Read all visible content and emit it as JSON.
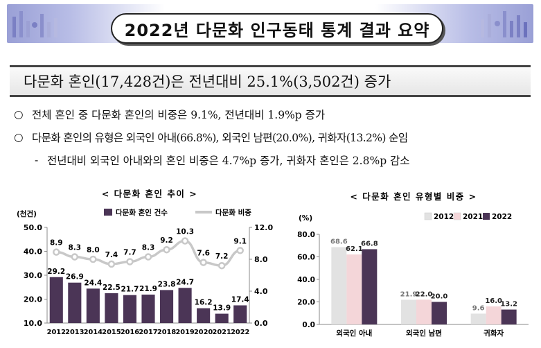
{
  "title": "2022년 다문화 인구동태 통계 결과 요약",
  "headline": "다문화 혼인(17,428건)은 전년대비 25.1%(3,502건) 증가",
  "bullets": [
    {
      "marker": "○",
      "text": "전체 혼인 중 다문화 혼인의 비중은 9.1%, 전년대비 1.9%p 증가"
    },
    {
      "marker": "○",
      "text": "다문화 혼인의 유형은 외국인 아내(66.8%), 외국인 남편(20.0%), 귀화자(13.2%) 순임"
    },
    {
      "marker": "-",
      "text": "전년대비 외국인 아내와의 혼인 비중은 4.7%p 증가, 귀화자 혼인은 2.8%p 감소"
    }
  ],
  "colors": {
    "bar_dark": "#4b3556",
    "line_gray": "#c8c8c8",
    "bar_2012": "#e2e2e2",
    "bar_2021": "#f4d6d9",
    "bar_2022": "#4b3556"
  },
  "chart_data": [
    {
      "type": "bar",
      "title": "< 다문화 혼인 추이 >",
      "unit_label": "(천건)",
      "categories": [
        "2012",
        "2013",
        "2014",
        "2015",
        "2016",
        "2017",
        "2018",
        "2019",
        "2020",
        "2021",
        "2022"
      ],
      "series": [
        {
          "name": "다문화 혼인 건수",
          "type": "bar",
          "axis": "left",
          "values": [
            29.2,
            26.9,
            24.4,
            22.5,
            21.7,
            21.9,
            23.8,
            24.7,
            16.2,
            13.9,
            17.4
          ]
        },
        {
          "name": "다문화 비중",
          "type": "line",
          "axis": "right",
          "values": [
            8.9,
            8.3,
            8.0,
            7.4,
            7.7,
            8.3,
            9.2,
            10.3,
            7.6,
            7.2,
            9.1
          ]
        }
      ],
      "ylim_left": [
        10.0,
        50.0
      ],
      "yticks_left": [
        "10.0",
        "20.0",
        "30.0",
        "40.0",
        "50.0"
      ],
      "ylim_right": [
        0.0,
        12.0
      ],
      "yticks_right": [
        "0.0",
        "4.0",
        "8.0",
        "12.0"
      ],
      "legend_position": "top"
    },
    {
      "type": "bar",
      "title": "< 다문화 혼인 유형별 비중 >",
      "unit_label": "(%)",
      "categories": [
        "외국인 아내",
        "외국인 남편",
        "귀화자"
      ],
      "series": [
        {
          "name": "2012",
          "values": [
            68.6,
            21.9,
            9.6
          ]
        },
        {
          "name": "2021",
          "values": [
            62.1,
            22.0,
            16.0
          ]
        },
        {
          "name": "2022",
          "values": [
            66.8,
            20.0,
            13.2
          ]
        }
      ],
      "ylim": [
        0.0,
        80.0
      ],
      "yticks": [
        "0.0",
        "20.0",
        "40.0",
        "60.0",
        "80.0"
      ],
      "legend_position": "top-right"
    }
  ]
}
